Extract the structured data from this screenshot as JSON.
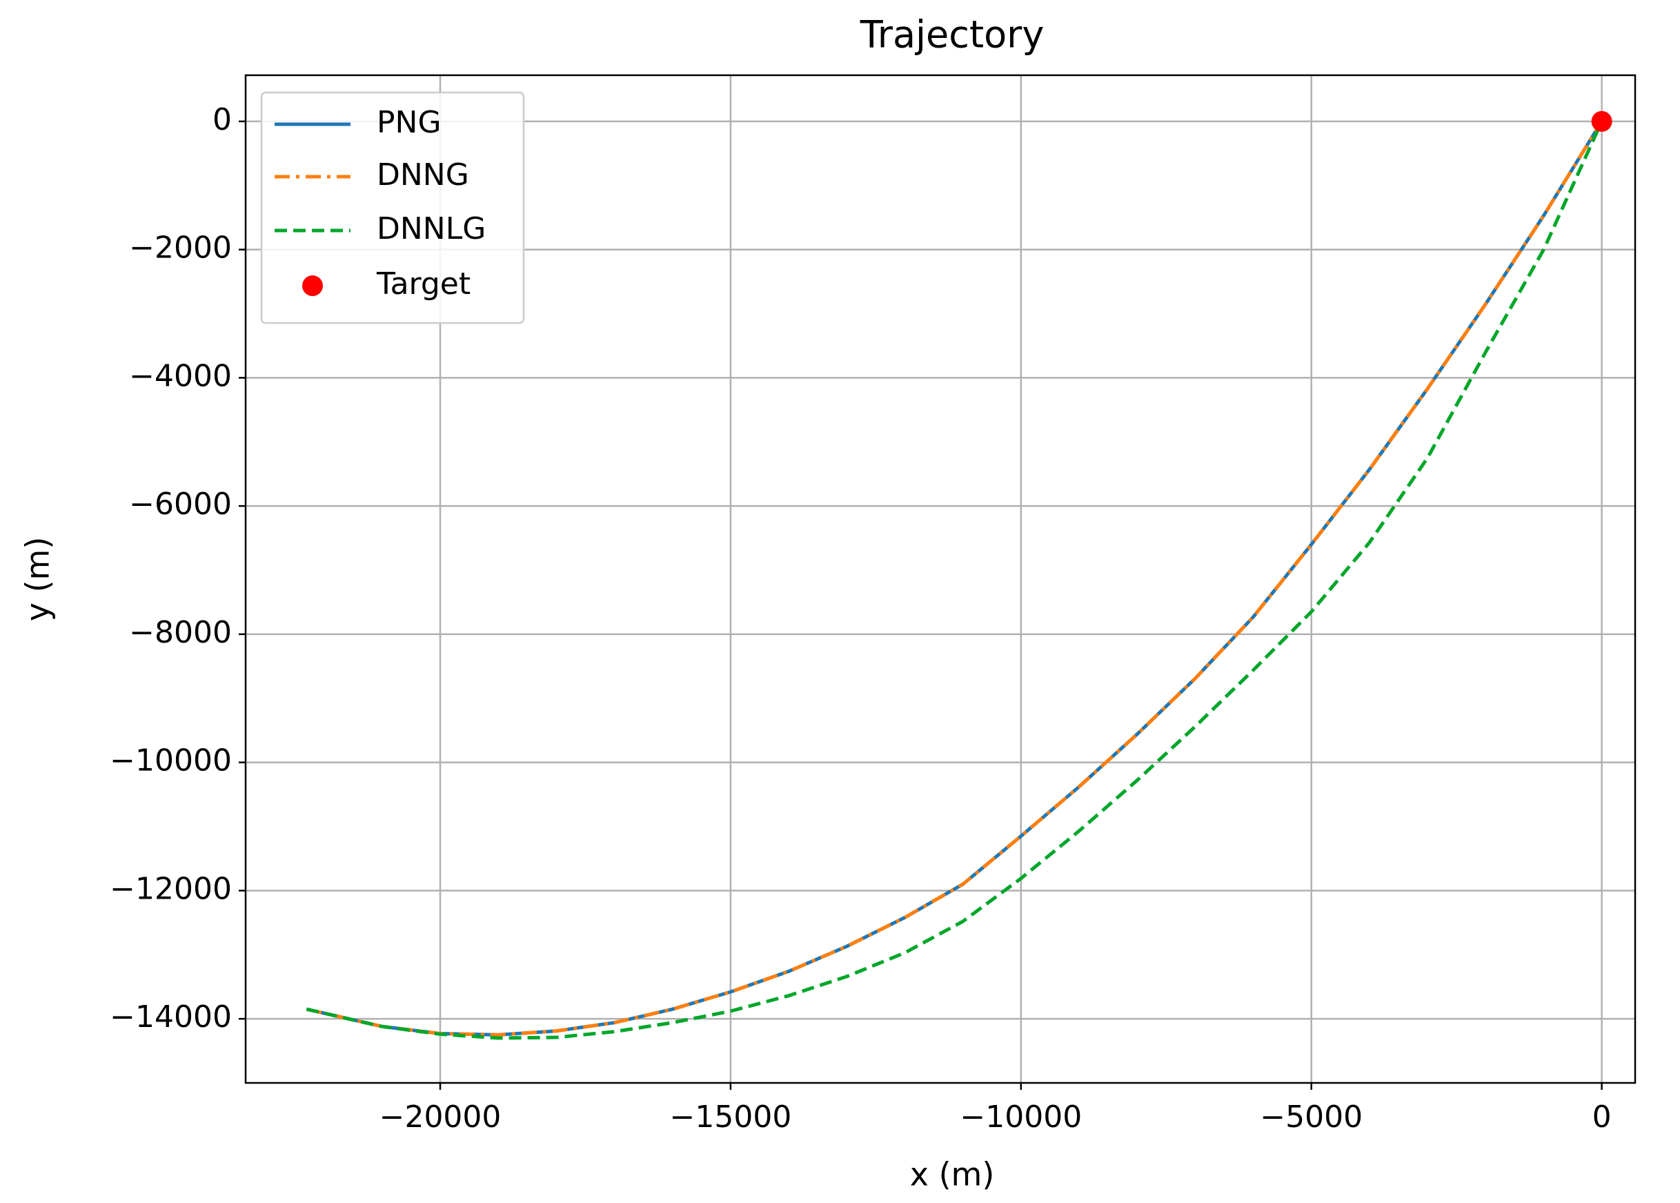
{
  "chart_data": {
    "type": "line",
    "title": "Trajectory",
    "x_label": "x (m)",
    "y_label": "y (m)",
    "x": [
      -22300,
      -21000,
      -20000,
      -19000,
      -18000,
      -17000,
      -16000,
      -15000,
      -14000,
      -13000,
      -12000,
      -11000,
      -10000,
      -9000,
      -8000,
      -7000,
      -6000,
      -5000,
      -4000,
      -3000,
      -2000,
      -1000,
      0
    ],
    "series": [
      {
        "name": "PNG",
        "color": "#1f77b4",
        "style": "solid",
        "values": [
          -13850,
          -14120,
          -14230,
          -14250,
          -14190,
          -14060,
          -13850,
          -13580,
          -13260,
          -12870,
          -12420,
          -11900,
          -11150,
          -10380,
          -9560,
          -8690,
          -7730,
          -6600,
          -5430,
          -4170,
          -2850,
          -1470,
          0
        ]
      },
      {
        "name": "DNNG",
        "color": "#ff7f0e",
        "style": "dashdot",
        "values": [
          -13850,
          -14120,
          -14230,
          -14250,
          -14190,
          -14060,
          -13850,
          -13580,
          -13260,
          -12870,
          -12420,
          -11900,
          -11150,
          -10380,
          -9560,
          -8690,
          -7730,
          -6600,
          -5430,
          -4170,
          -2850,
          -1470,
          0
        ]
      },
      {
        "name": "DNNLG",
        "color": "#00a62a",
        "style": "dashed",
        "values": [
          -13850,
          -14120,
          -14240,
          -14300,
          -14290,
          -14200,
          -14060,
          -13880,
          -13640,
          -13340,
          -12970,
          -12480,
          -11810,
          -11070,
          -10280,
          -9440,
          -8560,
          -7650,
          -6570,
          -5250,
          -3600,
          -2000,
          0
        ]
      }
    ],
    "target": {
      "name": "Target",
      "color": "#ff0000",
      "x": 0,
      "y": 0
    },
    "xlim": [
      -23350,
      575
    ],
    "ylim": [
      -15000,
      720
    ],
    "xticks": [
      {
        "value": -20000,
        "label": "−20000"
      },
      {
        "value": -15000,
        "label": "−15000"
      },
      {
        "value": -10000,
        "label": "−10000"
      },
      {
        "value": -5000,
        "label": "−5000"
      },
      0
    ],
    "yticks": [
      0,
      {
        "value": -2000,
        "label": "−2000"
      },
      {
        "value": -4000,
        "label": "−4000"
      },
      {
        "value": -6000,
        "label": "−6000"
      },
      {
        "value": -8000,
        "label": "−8000"
      },
      {
        "value": -10000,
        "label": "−10000"
      },
      {
        "value": -12000,
        "label": "−12000"
      },
      {
        "value": -14000,
        "label": "−14000"
      }
    ],
    "grid": true,
    "legend": "upper left"
  }
}
